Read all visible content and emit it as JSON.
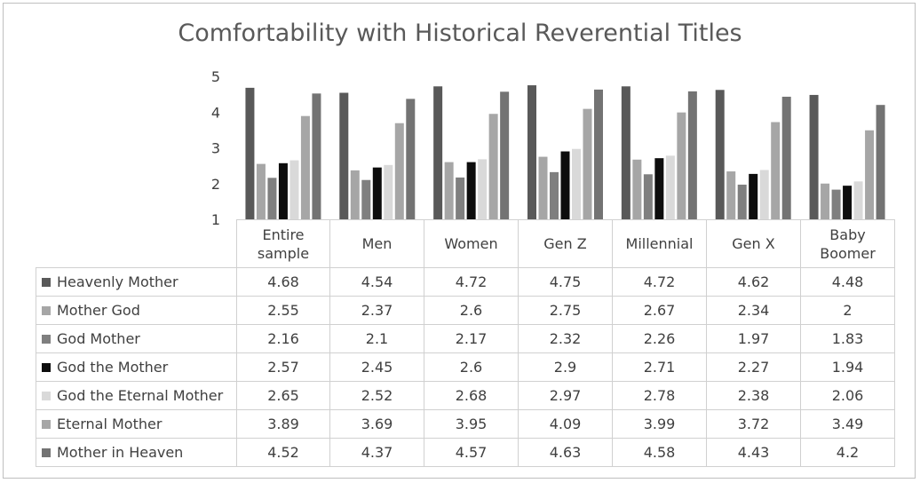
{
  "chart_data": {
    "type": "bar",
    "title": "Comfortability with Historical Reverential Titles",
    "categories": [
      "Entire sample",
      "Men",
      "Women",
      "Gen Z",
      "Millennial",
      "Gen X",
      "Baby Boomer"
    ],
    "ylim": [
      1,
      5
    ],
    "yticks": [
      "1",
      "2",
      "3",
      "4",
      "5"
    ],
    "grid": false,
    "legend": "data-table",
    "series": [
      {
        "name": "Heavenly Mother",
        "color": "#595959",
        "values": [
          4.68,
          4.54,
          4.72,
          4.75,
          4.72,
          4.62,
          4.48
        ]
      },
      {
        "name": "Mother God",
        "color": "#a6a6a6",
        "values": [
          2.55,
          2.37,
          2.6,
          2.75,
          2.67,
          2.34,
          2
        ]
      },
      {
        "name": "God Mother",
        "color": "#7f7f7f",
        "values": [
          2.16,
          2.1,
          2.17,
          2.32,
          2.26,
          1.97,
          1.83
        ]
      },
      {
        "name": "God the Mother",
        "color": "#0d0d0d",
        "values": [
          2.57,
          2.45,
          2.6,
          2.9,
          2.71,
          2.27,
          1.94
        ]
      },
      {
        "name": "God the Eternal Mother",
        "color": "#d9d9d9",
        "values": [
          2.65,
          2.52,
          2.68,
          2.97,
          2.78,
          2.38,
          2.06
        ]
      },
      {
        "name": "Eternal Mother",
        "color": "#a6a6a6",
        "values": [
          3.89,
          3.69,
          3.95,
          4.09,
          3.99,
          3.72,
          3.49
        ]
      },
      {
        "name": "Mother in Heaven",
        "color": "#737373",
        "values": [
          4.52,
          4.37,
          4.57,
          4.63,
          4.58,
          4.43,
          4.2
        ]
      }
    ]
  }
}
